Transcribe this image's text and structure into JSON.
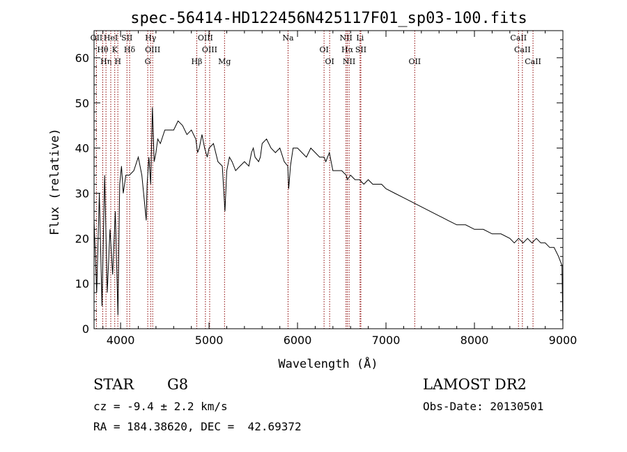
{
  "chart_data": {
    "type": "line",
    "title": "spec-56414-HD122456N425117F01_sp03-100.fits",
    "xlabel": "Wavelength (Å)",
    "ylabel": "Flux (relative)",
    "xlim": [
      3700,
      9000
    ],
    "ylim": [
      0,
      66
    ],
    "x_ticks": [
      4000,
      5000,
      6000,
      7000,
      8000,
      9000
    ],
    "y_ticks": [
      0,
      10,
      20,
      30,
      40,
      50,
      60
    ],
    "line_color": "#000000",
    "marker_color": "#8b0000",
    "grid": false,
    "series": [
      {
        "x": [
          3700,
          3730,
          3760,
          3790,
          3820,
          3850,
          3880,
          3910,
          3940,
          3970,
          3990,
          4010,
          4030,
          4060,
          4100,
          4150,
          4200,
          4240,
          4270,
          4290,
          4300,
          4320,
          4340,
          4360,
          4380,
          4400,
          4420,
          4450,
          4500,
          4550,
          4600,
          4650,
          4700,
          4750,
          4800,
          4850,
          4870,
          4890,
          4920,
          4950,
          4980,
          5000,
          5050,
          5100,
          5150,
          5180,
          5200,
          5230,
          5260,
          5300,
          5350,
          5400,
          5450,
          5480,
          5500,
          5520,
          5560,
          5580,
          5600,
          5650,
          5700,
          5750,
          5800,
          5850,
          5890,
          5900,
          5920,
          5950,
          6000,
          6050,
          6100,
          6150,
          6200,
          6250,
          6300,
          6320,
          6340,
          6360,
          6400,
          6450,
          6500,
          6550,
          6563,
          6600,
          6650,
          6700,
          6750,
          6800,
          6850,
          6900,
          6950,
          7000,
          7100,
          7200,
          7300,
          7400,
          7500,
          7600,
          7700,
          7800,
          7900,
          8000,
          8100,
          8200,
          8300,
          8400,
          8450,
          8500,
          8550,
          8600,
          8650,
          8700,
          8750,
          8800,
          8850,
          8900,
          8950,
          8990,
          9000
        ],
        "y": [
          24,
          8,
          30,
          5,
          34,
          8,
          22,
          12,
          26,
          3,
          32,
          36,
          30,
          34,
          34,
          35,
          38,
          34,
          28,
          24,
          32,
          38,
          32,
          49,
          37,
          39,
          42,
          41,
          44,
          44,
          44,
          46,
          45,
          43,
          44,
          42,
          39,
          40,
          43,
          40,
          38,
          40,
          41,
          37,
          36,
          26,
          35,
          38,
          37,
          35,
          36,
          37,
          36,
          39,
          40,
          38,
          37,
          38,
          41,
          42,
          40,
          39,
          40,
          37,
          36,
          31,
          36,
          40,
          40,
          39,
          38,
          40,
          39,
          38,
          38,
          37,
          38,
          39,
          35,
          35,
          35,
          34,
          33,
          34,
          33,
          33,
          32,
          33,
          32,
          32,
          32,
          31,
          30,
          29,
          28,
          27,
          26,
          25,
          24,
          23,
          23,
          22,
          22,
          21,
          21,
          20,
          19,
          20,
          19,
          20,
          19,
          20,
          19,
          19,
          18,
          18,
          16,
          14,
          0
        ]
      }
    ],
    "line_markers": [
      {
        "x": 3727,
        "label": "OII"
      },
      {
        "x": 3798,
        "label": "Hθ"
      },
      {
        "x": 3835,
        "label": "Hη"
      },
      {
        "x": 3889,
        "label": "HeI"
      },
      {
        "x": 3934,
        "label": "K"
      },
      {
        "x": 3969,
        "label": "H"
      },
      {
        "x": 4072,
        "label": "SII"
      },
      {
        "x": 4102,
        "label": "Hδ"
      },
      {
        "x": 4307,
        "label": "G"
      },
      {
        "x": 4340,
        "label": "Hγ"
      },
      {
        "x": 4363,
        "label": "OIII"
      },
      {
        "x": 4861,
        "label": "Hβ"
      },
      {
        "x": 4959,
        "label": "OIII"
      },
      {
        "x": 5007,
        "label": "OIII"
      },
      {
        "x": 5175,
        "label": "Mg"
      },
      {
        "x": 5893,
        "label": "Na"
      },
      {
        "x": 6300,
        "label": "OI"
      },
      {
        "x": 6363,
        "label": "OI"
      },
      {
        "x": 6548,
        "label": "NII"
      },
      {
        "x": 6563,
        "label": "Hα"
      },
      {
        "x": 6583,
        "label": "NII"
      },
      {
        "x": 6707,
        "label": "Li"
      },
      {
        "x": 6716,
        "label": "SII"
      },
      {
        "x": 7325,
        "label": "OII"
      },
      {
        "x": 8498,
        "label": "CaII"
      },
      {
        "x": 8542,
        "label": "CaII"
      },
      {
        "x": 8662,
        "label": "CaII"
      }
    ]
  },
  "info": {
    "object_class": "STAR",
    "subclass": "G8",
    "redshift": "cz = -9.4 ± 2.2 km/s",
    "coords": "RA = 184.38620, DEC =  42.69372",
    "survey": "LAMOST DR2",
    "obs_date": "Obs-Date: 20130501"
  }
}
